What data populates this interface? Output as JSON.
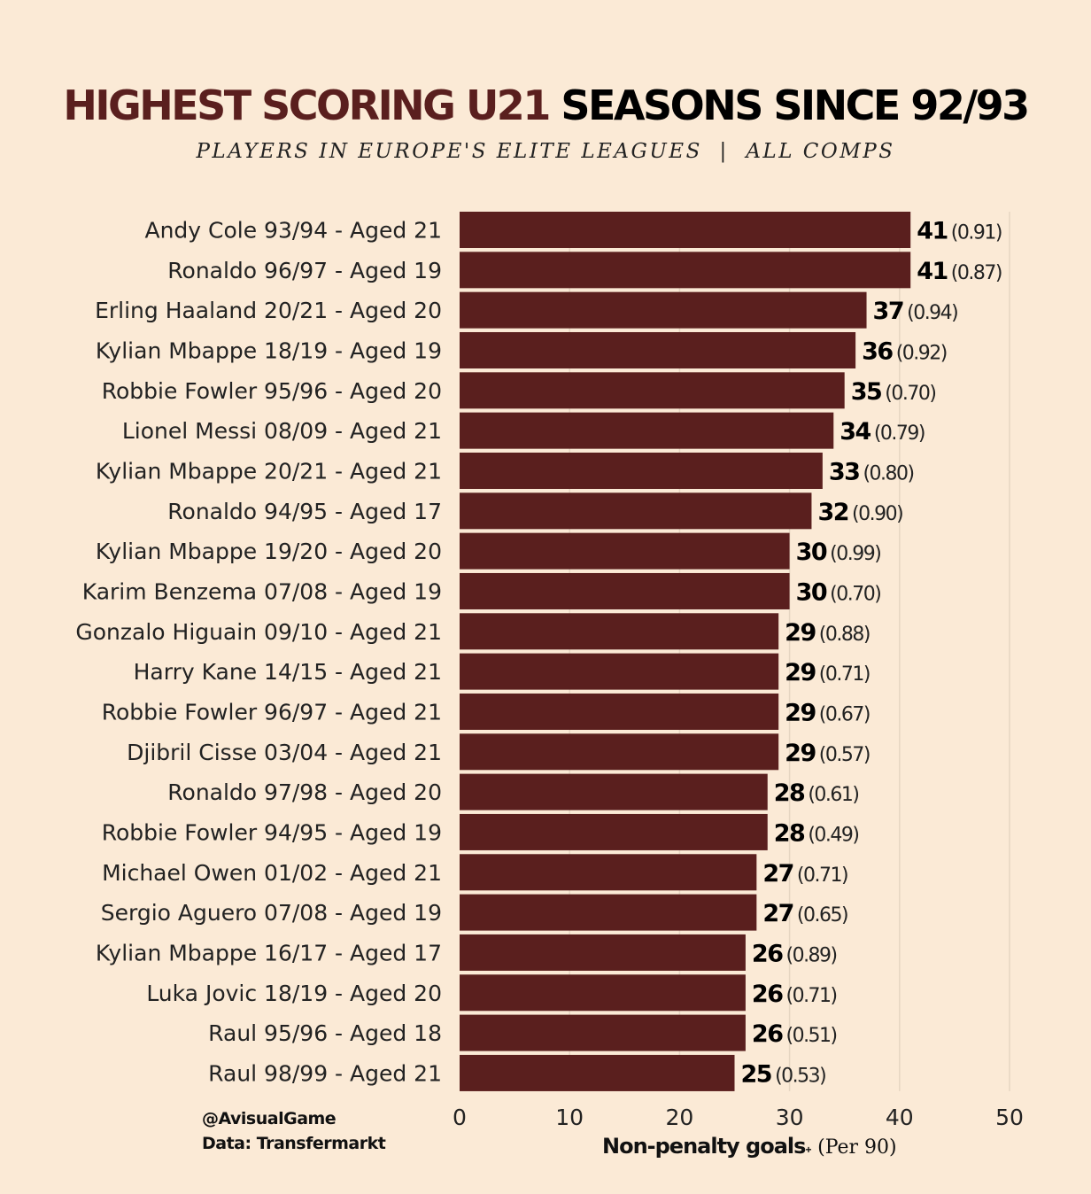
{
  "header": {
    "title_part1": "HIGHEST SCORING U21",
    "title_part2": "SEASONS SINCE 92/93",
    "subtitle": "PLAYERS IN EUROPE'S ELITE LEAGUES  |  ALL COMPS"
  },
  "footer": {
    "handle": "@AvisualGame",
    "source": "Data: Transfermarkt",
    "xlabel_bold": "Non-penalty goals",
    "xlabel_sup": "+",
    "xlabel_rest": "(Per 90)"
  },
  "colors": {
    "background": "#fbead6",
    "bar": "#5a1f1e",
    "gridline": "#e6d6c2"
  },
  "chart_data": {
    "type": "bar",
    "orientation": "horizontal",
    "title": "HIGHEST SCORING U21 SEASONS SINCE 92/93",
    "subtitle": "PLAYERS IN EUROPE'S ELITE LEAGUES  |  ALL COMPS",
    "xlabel": "Non-penalty goals+ (Per 90)",
    "ylabel": "",
    "xlim": [
      0,
      50
    ],
    "xticks": [
      0,
      10,
      20,
      30,
      40,
      50
    ],
    "grid": true,
    "categories": [
      "Andy Cole 93/94 - Aged 21",
      "Ronaldo 96/97 - Aged 19",
      "Erling Haaland 20/21 - Aged 20",
      "Kylian Mbappe 18/19 - Aged 19",
      "Robbie Fowler 95/96 - Aged 20",
      "Lionel Messi 08/09 - Aged 21",
      "Kylian Mbappe 20/21 - Aged 21",
      "Ronaldo 94/95 - Aged 17",
      "Kylian Mbappe 19/20 - Aged 20",
      "Karim Benzema 07/08 - Aged 19",
      "Gonzalo Higuain 09/10 - Aged 21",
      "Harry Kane 14/15 - Aged 21",
      "Robbie Fowler 96/97 - Aged 21",
      "Djibril Cisse 03/04 - Aged 21",
      "Ronaldo 97/98 - Aged 20",
      "Robbie Fowler 94/95 - Aged 19",
      "Michael Owen 01/02 - Aged 21",
      "Sergio Aguero 07/08 - Aged 19",
      "Kylian Mbappe 16/17 - Aged 17",
      "Luka Jovic 18/19 - Aged 20",
      "Raul 95/96 - Aged 18",
      "Raul 98/99 - Aged 21"
    ],
    "values": [
      41,
      41,
      37,
      36,
      35,
      34,
      33,
      32,
      30,
      30,
      29,
      29,
      29,
      29,
      28,
      28,
      27,
      27,
      26,
      26,
      26,
      25
    ],
    "per90": [
      "(0.91)",
      "(0.87)",
      "(0.94)",
      "(0.92)",
      "(0.70)",
      "(0.79)",
      "(0.80)",
      "(0.90)",
      "(0.99)",
      "(0.70)",
      "(0.88)",
      "(0.71)",
      "(0.67)",
      "(0.57)",
      "(0.61)",
      "(0.49)",
      "(0.71)",
      "(0.65)",
      "(0.89)",
      "(0.71)",
      "(0.51)",
      "(0.53)"
    ]
  }
}
